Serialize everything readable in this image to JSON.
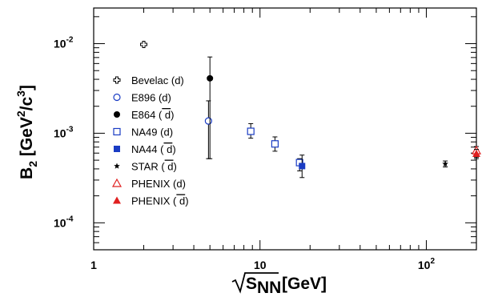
{
  "chart_data": {
    "type": "scatter",
    "xscale": "log",
    "yscale": "log",
    "xlim": [
      1,
      200
    ],
    "ylim": [
      5e-05,
      0.025
    ],
    "xlabel": "√S_NN [GeV]",
    "ylabel": "B2 [GeV²/c³]",
    "x_ticklabels": [
      {
        "value": 1,
        "label": "1"
      },
      {
        "value": 10,
        "label": "10"
      },
      {
        "value": 100,
        "label": "10",
        "sup": "2"
      }
    ],
    "y_ticklabels": [
      {
        "value": 0.0001,
        "label": "10",
        "sup": "-4"
      },
      {
        "value": 0.001,
        "label": "10",
        "sup": "-3"
      },
      {
        "value": 0.01,
        "label": "10",
        "sup": "-2"
      }
    ],
    "legend_position": "left",
    "series": [
      {
        "name": "Bevelac (d)",
        "name_main": "Bevelac (d)",
        "marker": "cross-open",
        "color": "#000000",
        "points": [
          {
            "x": 2.0,
            "y": 0.0098,
            "lo": 0.0098,
            "hi": 0.0098
          }
        ]
      },
      {
        "name": "E896 (d)",
        "name_main": "E896 (d)",
        "marker": "circle-open",
        "color": "#1a3cc4",
        "points": [
          {
            "x": 4.9,
            "y": 0.00137,
            "lo": 0.00052,
            "hi": 0.0023
          }
        ]
      },
      {
        "name": "E864 (d̄)",
        "name_main": "E864 (",
        "name_bar": "d",
        "name_end": ")",
        "marker": "circle-filled",
        "color": "#000000",
        "points": [
          {
            "x": 5.0,
            "y": 0.0041,
            "lo": 0.00052,
            "hi": 0.0071
          }
        ]
      },
      {
        "name": "NA49 (d)",
        "name_main": "NA49 (d)",
        "marker": "square-open",
        "color": "#1a3cc4",
        "points": [
          {
            "x": 8.8,
            "y": 0.00105,
            "lo": 0.00088,
            "hi": 0.00128
          },
          {
            "x": 12.3,
            "y": 0.00076,
            "lo": 0.00063,
            "hi": 0.00091
          },
          {
            "x": 17.3,
            "y": 0.00047,
            "lo": 0.00038,
            "hi": 0.00052
          }
        ]
      },
      {
        "name": "NA44 (d̄)",
        "name_main": "NA44 (",
        "name_bar": "d",
        "name_end": ")",
        "marker": "square-filled",
        "color": "#1a3cc4",
        "points": [
          {
            "x": 17.9,
            "y": 0.00043,
            "lo": 0.00032,
            "hi": 0.00057
          }
        ]
      },
      {
        "name": "STAR (d̄)",
        "name_main": "STAR (",
        "name_bar": "d",
        "name_end": ")",
        "marker": "star",
        "color": "#000000",
        "points": [
          {
            "x": 130,
            "y": 0.000455,
            "lo": 0.00042,
            "hi": 0.00049
          }
        ]
      },
      {
        "name": "PHENIX (d)",
        "name_main": "PHENIX (d)",
        "marker": "triangle-open",
        "color": "#e02020",
        "points": [
          {
            "x": 200,
            "y": 0.00064,
            "lo": 0.00052,
            "hi": 0.00071
          }
        ]
      },
      {
        "name": "PHENIX (d̄)",
        "name_main": "PHENIX (",
        "name_bar": "d",
        "name_end": ")",
        "marker": "triangle-filled",
        "color": "#e02020",
        "points": [
          {
            "x": 200,
            "y": 0.00059,
            "lo": 0.00054,
            "hi": 0.00066
          }
        ]
      }
    ]
  }
}
